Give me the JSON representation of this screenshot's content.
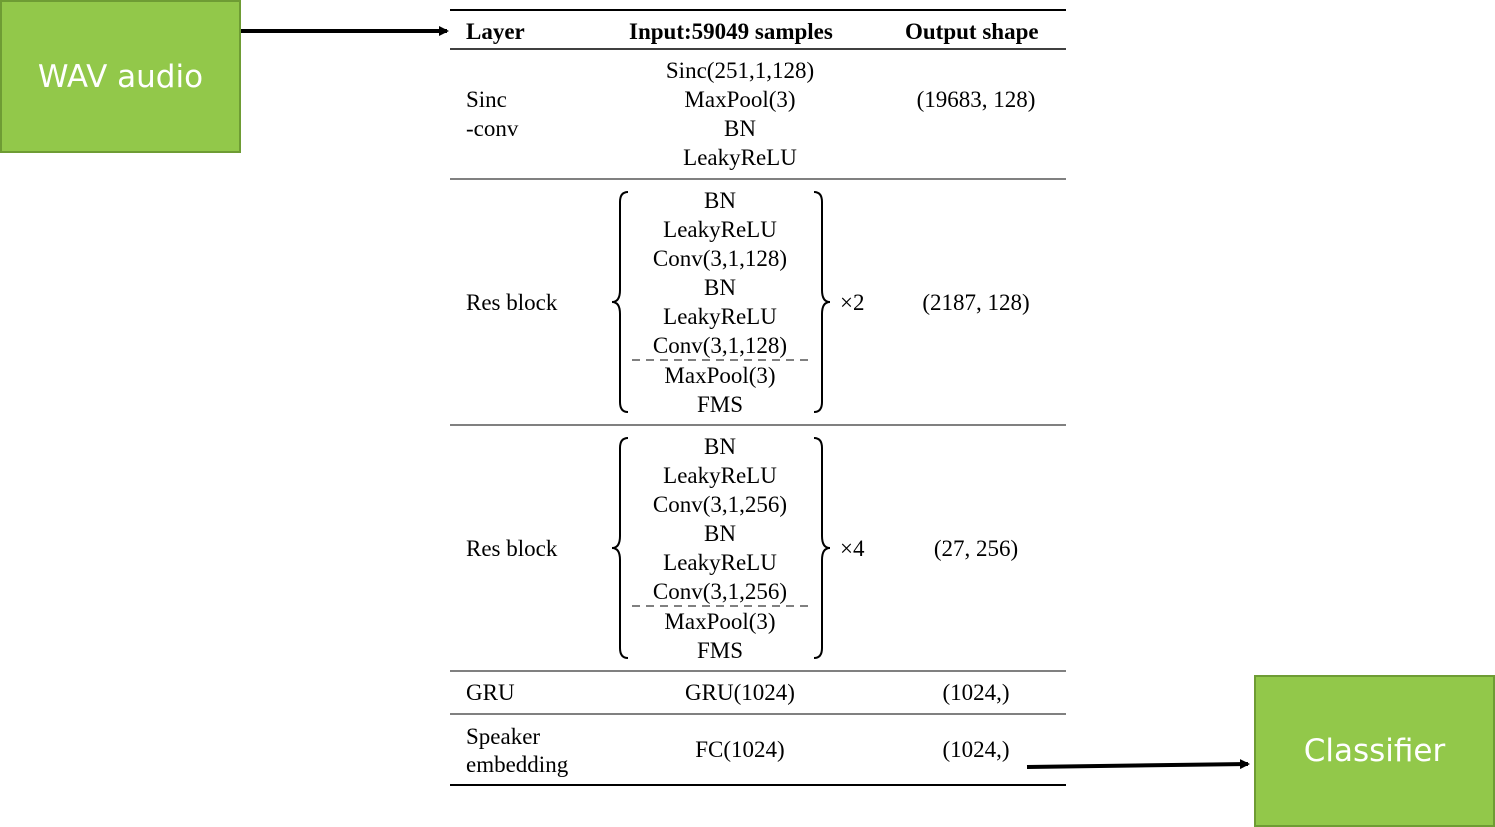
{
  "input_box": {
    "label": "WAV audio"
  },
  "output_box": {
    "label": "Classifier"
  },
  "table": {
    "headers": {
      "layer": "Layer",
      "input": "Input:59049 samples",
      "output": "Output shape"
    },
    "rows": [
      {
        "layer_lines": [
          "Sinc",
          "-conv"
        ],
        "ops": [
          "Sinc(251,1,128)",
          "MaxPool(3)",
          "BN",
          "LeakyReLU"
        ],
        "output": "(19683, 128)"
      },
      {
        "layer": "Res block",
        "ops_top": [
          "BN",
          "LeakyReLU",
          "Conv(3,1,128)",
          "BN",
          "LeakyReLU",
          "Conv(3,1,128)"
        ],
        "ops_bottom": [
          "MaxPool(3)",
          "FMS"
        ],
        "repeat": "×2",
        "output": "(2187, 128)"
      },
      {
        "layer": "Res block",
        "ops_top": [
          "BN",
          "LeakyReLU",
          "Conv(3,1,256)",
          "BN",
          "LeakyReLU",
          "Conv(3,1,256)"
        ],
        "ops_bottom": [
          "MaxPool(3)",
          "FMS"
        ],
        "repeat": "×4",
        "output": "(27, 256)"
      },
      {
        "layer": "GRU",
        "op": "GRU(1024)",
        "output": "(1024,)"
      },
      {
        "layer_lines": [
          "Speaker",
          "embedding"
        ],
        "op": "FC(1024)",
        "output": "(1024,)"
      }
    ]
  },
  "colors": {
    "box_fill": "#92c84a",
    "box_border": "#6e9c34",
    "box_text": "#ffffff",
    "rule": "#000000"
  }
}
